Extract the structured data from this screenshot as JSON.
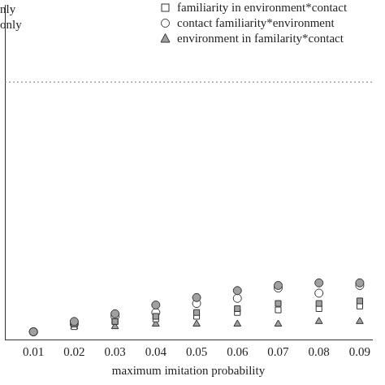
{
  "chart_data": {
    "type": "scatter",
    "x_label": "maximum imitation probability",
    "xlim": [
      0.003,
      0.093
    ],
    "xticks": [
      0.01,
      0.02,
      0.03,
      0.04,
      0.05,
      0.06,
      0.07,
      0.08,
      0.09
    ],
    "ylim": [
      0,
      1.3
    ],
    "tick_labels": "x",
    "grid": false,
    "legend": "top",
    "reference_line": 1,
    "x": [
      0.01,
      0.02,
      0.03,
      0.04,
      0.05,
      0.06,
      0.07,
      0.08,
      0.09
    ],
    "series": [
      {
        "name": "nly",
        "color": "#a0a0a0",
        "marker": "circle",
        "values": [
          0.03,
          0.07,
          0.1,
          0.134,
          0.163,
          0.19,
          0.21,
          0.22,
          0.22
        ]
      },
      {
        "name": "only",
        "color": "#a0a0a0",
        "marker": "square",
        "values": [
          0.03,
          0.06,
          0.07,
          0.09,
          0.105,
          0.12,
          0.14,
          0.14,
          0.15
        ]
      },
      {
        "name": "familiarity in environment*contact",
        "color": "#ffffff",
        "marker": "square",
        "values": [
          0.03,
          0.05,
          0.07,
          0.08,
          0.09,
          0.105,
          0.115,
          0.12,
          0.13
        ]
      },
      {
        "name": "contact familiarity*environment",
        "color": "#ffffff",
        "marker": "circle",
        "values": [
          0.03,
          0.06,
          0.09,
          0.105,
          0.14,
          0.16,
          0.2,
          0.18,
          0.21
        ]
      },
      {
        "name": "environment in familarity*contact",
        "color": "#a0a0a0",
        "marker": "triangle",
        "values": [
          0.03,
          0.05,
          0.05,
          0.06,
          0.06,
          0.06,
          0.06,
          0.07,
          0.07
        ]
      }
    ]
  }
}
